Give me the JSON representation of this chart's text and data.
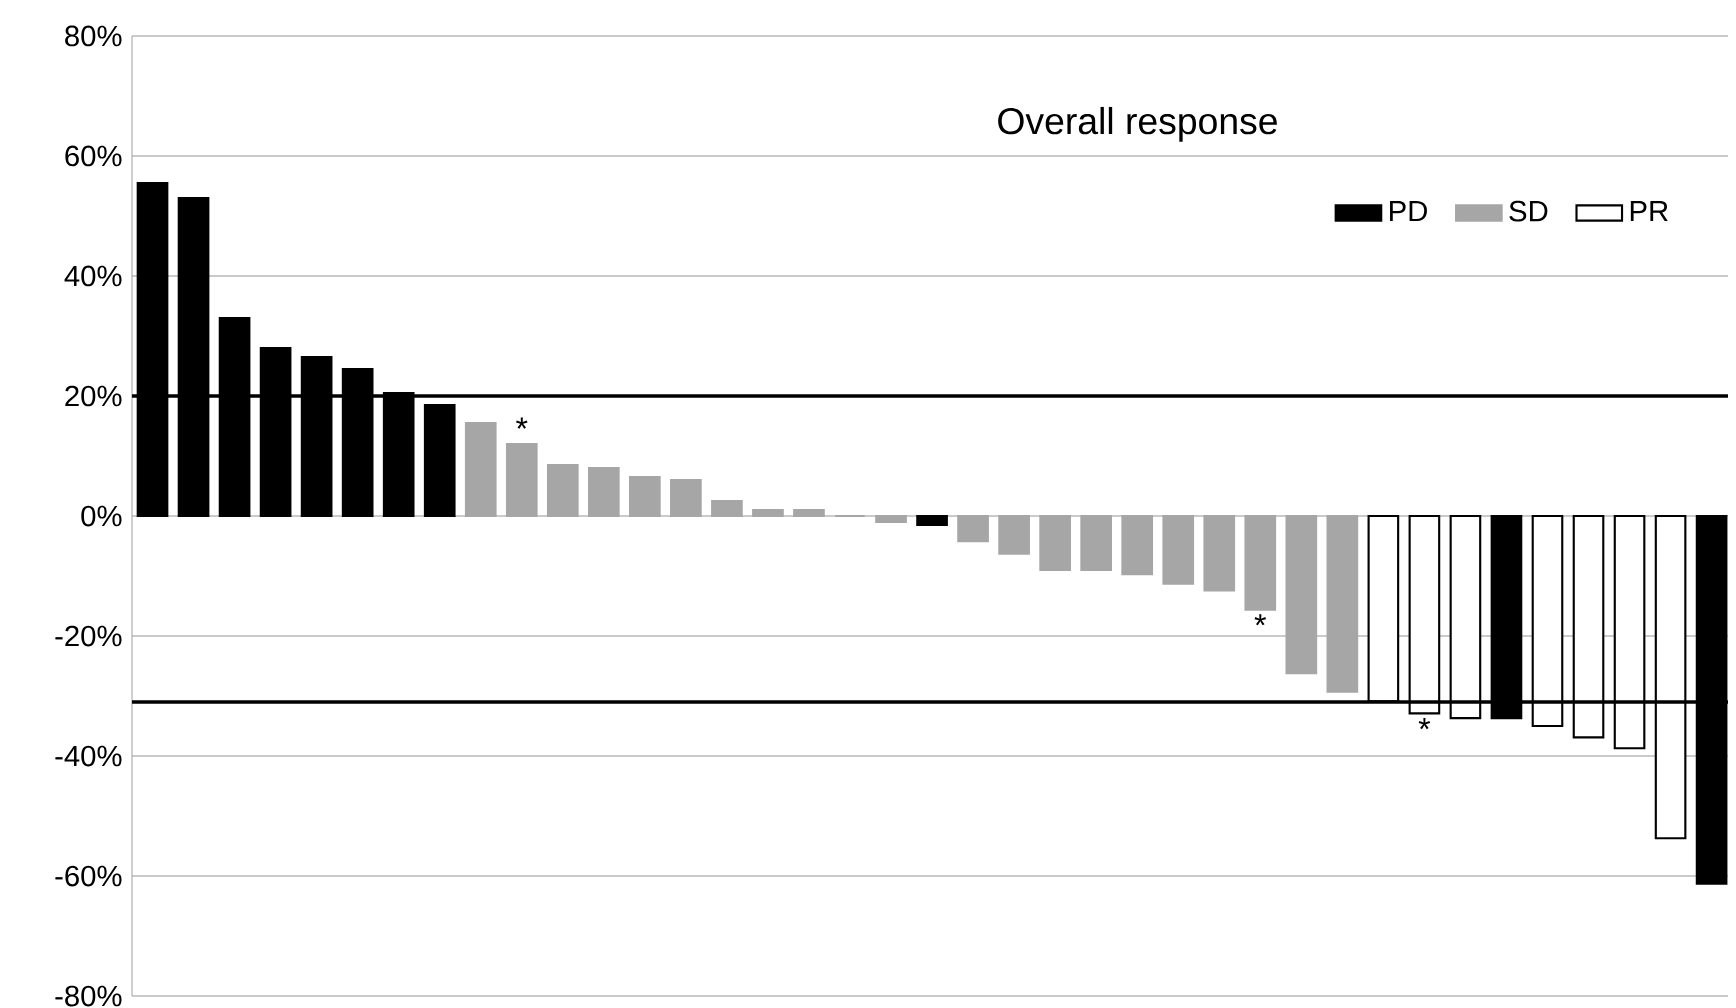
{
  "chart_data": {
    "type": "bar",
    "legend_title": "Overall response",
    "categories": [
      null,
      null,
      null,
      null,
      null,
      null,
      null,
      null,
      null,
      null,
      null,
      null,
      null,
      null,
      null,
      null,
      null,
      null,
      null,
      null,
      null,
      null,
      null,
      null,
      null,
      null,
      null,
      null,
      null,
      null,
      null,
      null,
      null,
      null,
      null,
      null,
      null,
      null,
      null
    ],
    "series": [
      {
        "name": "PD",
        "color": "#000000",
        "values": [
          55.5,
          53,
          33,
          28,
          26.5,
          24.5,
          20.5,
          18.5,
          null,
          null,
          null,
          null,
          null,
          null,
          null,
          null,
          null,
          null,
          null,
          -1.5,
          null,
          null,
          null,
          null,
          null,
          null,
          null,
          null,
          null,
          null,
          null,
          null,
          null,
          -33.7,
          null,
          null,
          null,
          null,
          -61.3
        ]
      },
      {
        "name": "SD",
        "color": "#a6a6a6",
        "values": [
          null,
          null,
          null,
          null,
          null,
          null,
          null,
          null,
          15.5,
          12,
          8.5,
          8,
          6.5,
          6,
          2.5,
          1,
          1,
          0,
          -1,
          null,
          -4.2,
          -6.3,
          -9,
          -9,
          -9.7,
          -11.3,
          -12.4,
          -15.6,
          -26.2,
          -29.3,
          null,
          null,
          null,
          null,
          null,
          null,
          null,
          null,
          null
        ],
        "value_labels": [
          null,
          null,
          null,
          null,
          null,
          null,
          null,
          null,
          null,
          "*",
          null,
          null,
          null,
          null,
          null,
          null,
          null,
          null,
          null,
          null,
          null,
          null,
          null,
          null,
          null,
          null,
          null,
          "*",
          null,
          null,
          null,
          null,
          null,
          null,
          null,
          null,
          null,
          null,
          null
        ]
      },
      {
        "name": "PR",
        "color": "#ffffff",
        "values": [
          null,
          null,
          null,
          null,
          null,
          null,
          null,
          null,
          null,
          null,
          null,
          null,
          null,
          null,
          null,
          null,
          null,
          null,
          null,
          null,
          null,
          null,
          null,
          null,
          null,
          null,
          null,
          null,
          null,
          null,
          -30.9,
          -32.9,
          -33.7,
          null,
          -35,
          -36.9,
          -38.7,
          -53.7,
          null
        ],
        "value_labels": [
          null,
          null,
          null,
          null,
          null,
          null,
          null,
          null,
          null,
          null,
          null,
          null,
          null,
          null,
          null,
          null,
          null,
          null,
          null,
          null,
          null,
          null,
          null,
          null,
          null,
          null,
          null,
          null,
          null,
          null,
          null,
          "*",
          null,
          null,
          null,
          null,
          null,
          null,
          null
        ]
      }
    ],
    "ylim": [
      -80,
      80
    ],
    "yticks": [
      {
        "value": -80,
        "label": "-80%"
      },
      {
        "value": -60,
        "label": "-60%"
      },
      {
        "value": -40,
        "label": "-40%"
      },
      {
        "value": -20,
        "label": "-20%"
      },
      {
        "value": 0,
        "label": "0%"
      },
      {
        "value": 20,
        "label": "20%"
      },
      {
        "value": 40,
        "label": "40%"
      },
      {
        "value": 60,
        "label": "60%"
      },
      {
        "value": 80,
        "label": "80%"
      }
    ],
    "ref_lines": [
      {
        "axis": "y",
        "value": 20,
        "color": "#000000"
      },
      {
        "axis": "y",
        "value": -31,
        "color": "#000000"
      }
    ],
    "grid": "y",
    "legend": "top right"
  }
}
